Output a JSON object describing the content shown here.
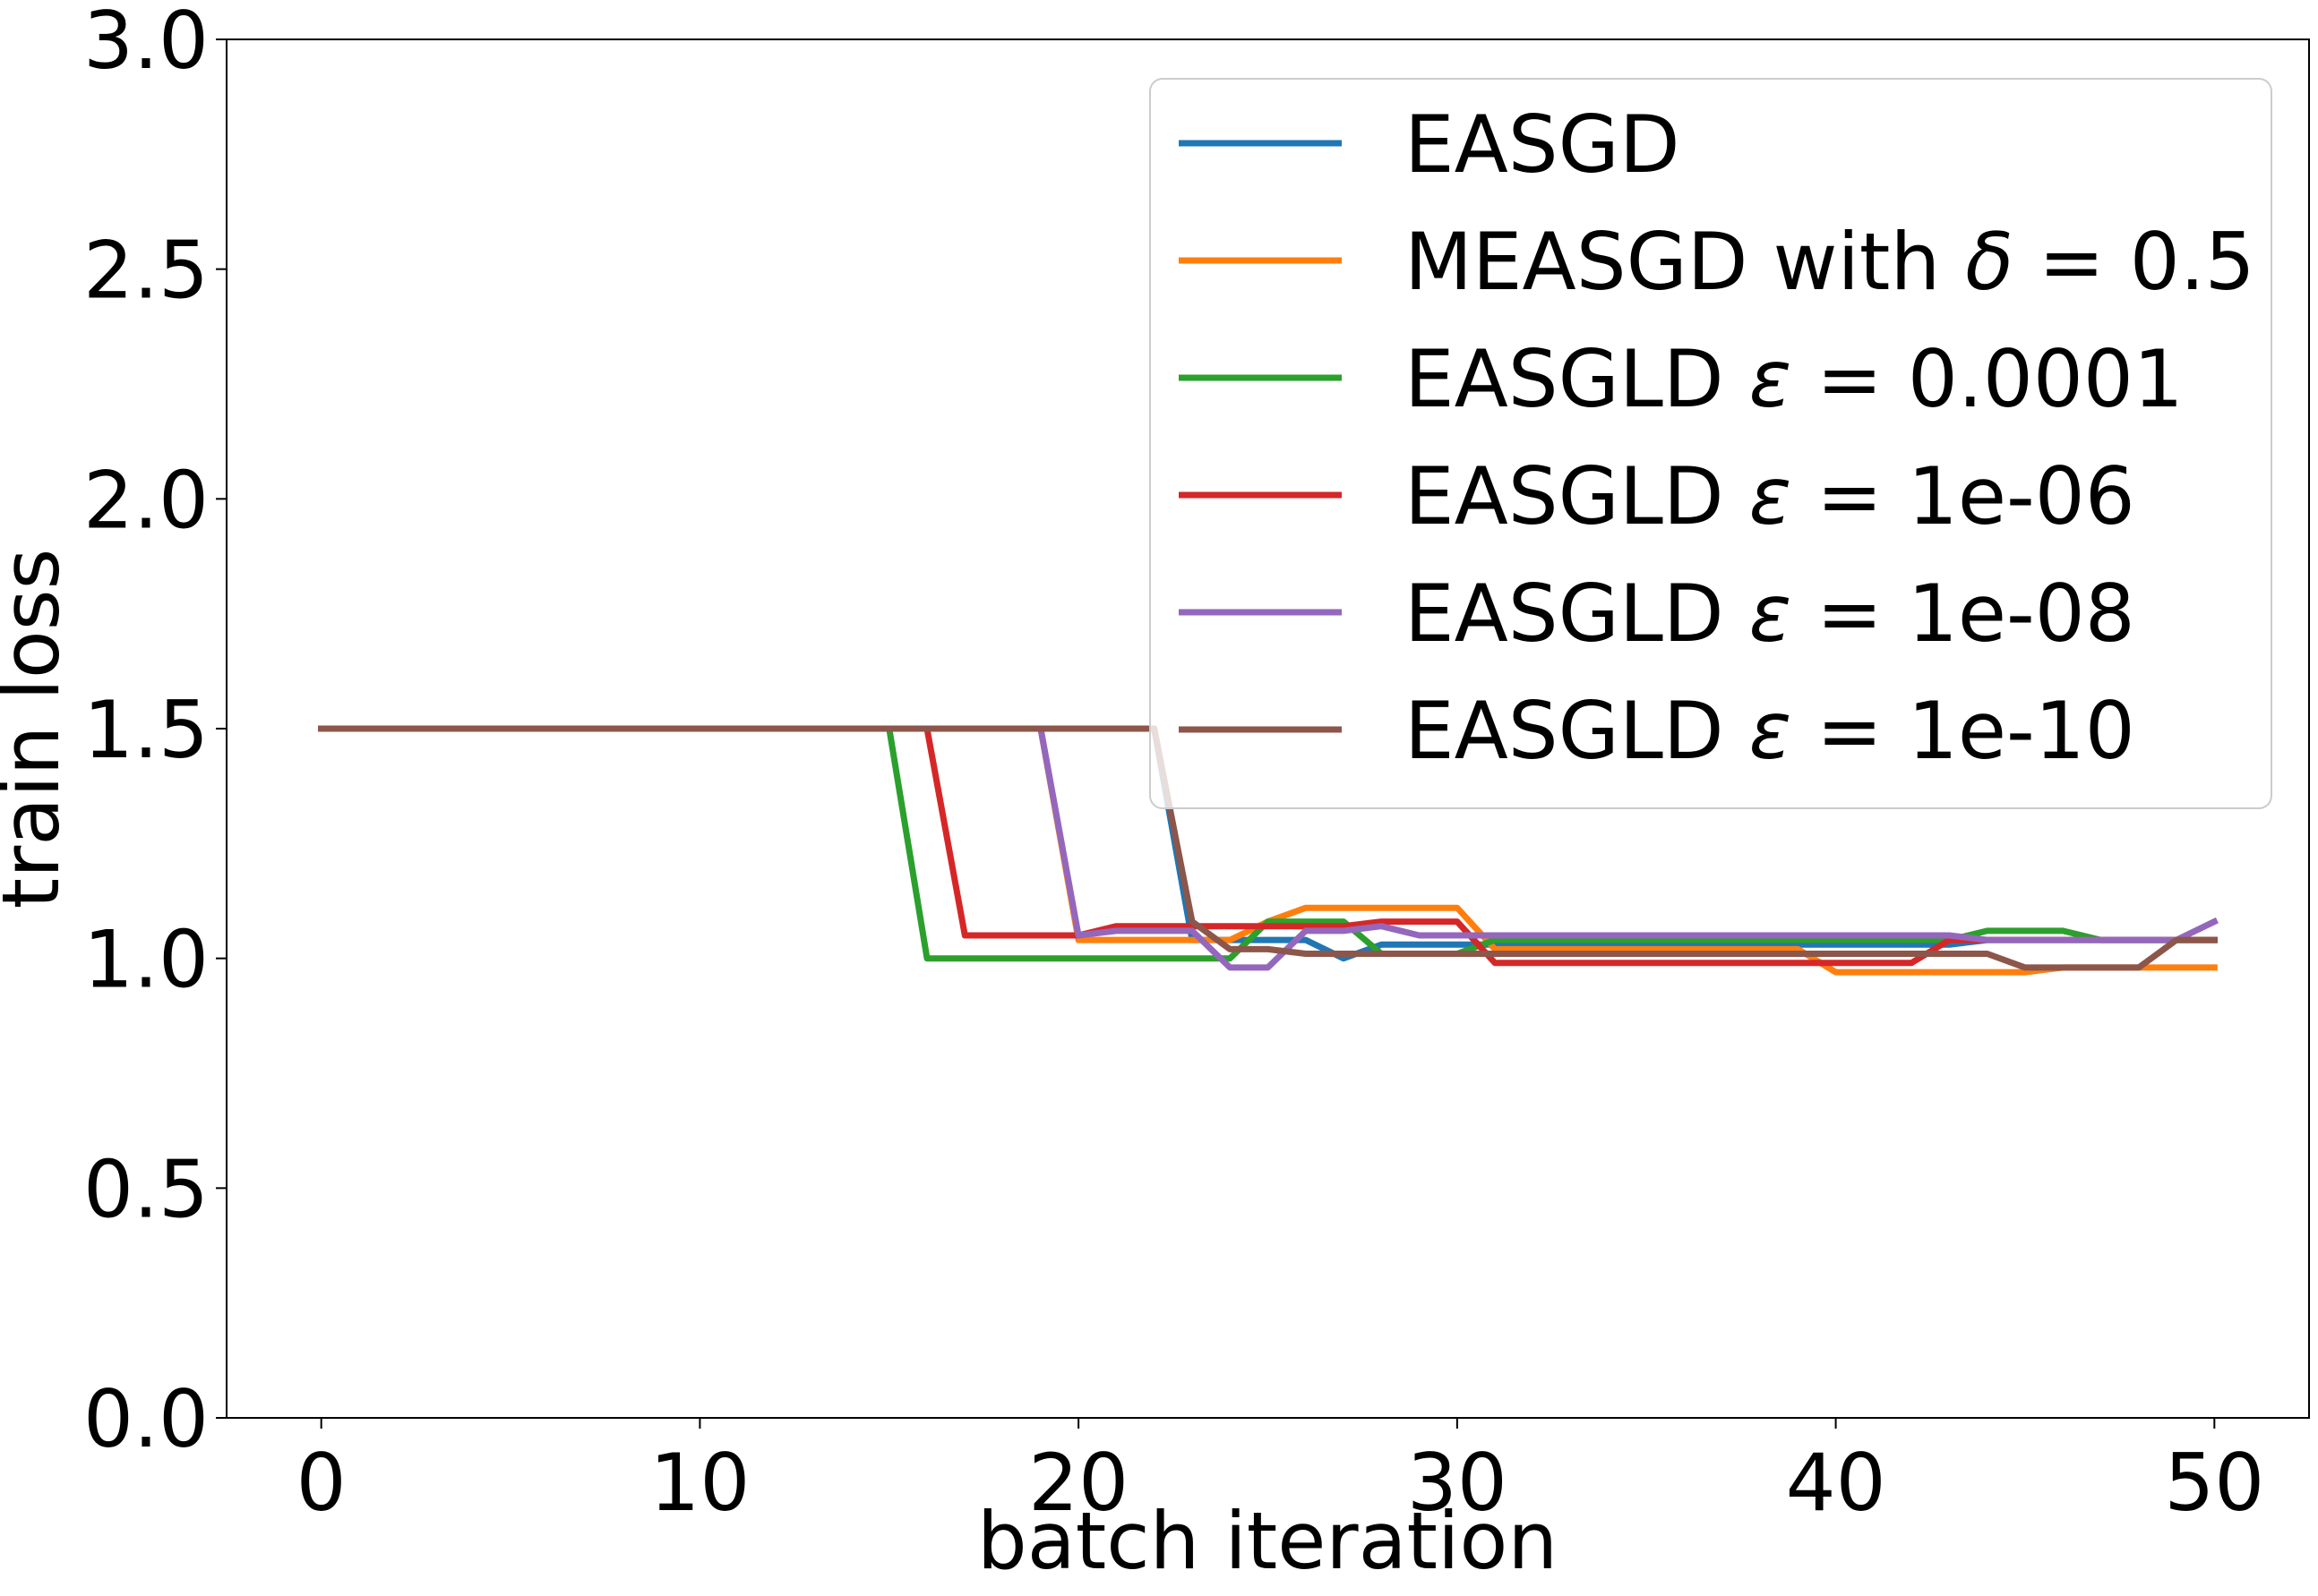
{
  "chart_data": {
    "type": "line",
    "xlabel": "batch iteration",
    "ylabel": "train loss",
    "xlim": [
      -2.5,
      52.5
    ],
    "ylim": [
      0.0,
      3.0
    ],
    "xticks": [
      0,
      10,
      20,
      30,
      40,
      50
    ],
    "xtick_labels": [
      "0",
      "10",
      "20",
      "30",
      "40",
      "50"
    ],
    "yticks": [
      0.0,
      0.5,
      1.0,
      1.5,
      2.0,
      2.5,
      3.0
    ],
    "ytick_labels": [
      "0.0",
      "0.5",
      "1.0",
      "1.5",
      "2.0",
      "2.5",
      "3.0"
    ],
    "grid": false,
    "legend_position": "top-right",
    "x": [
      0,
      1,
      2,
      3,
      4,
      5,
      6,
      7,
      8,
      9,
      10,
      11,
      12,
      13,
      14,
      15,
      16,
      17,
      18,
      19,
      20,
      21,
      22,
      23,
      24,
      25,
      26,
      27,
      28,
      29,
      30,
      31,
      32,
      33,
      34,
      35,
      36,
      37,
      38,
      39,
      40,
      41,
      42,
      43,
      44,
      45,
      46,
      47,
      48,
      49,
      50
    ],
    "series": [
      {
        "name": "EASGD",
        "color": "#1f77b4",
        "values": [
          1.5,
          1.5,
          1.5,
          1.5,
          1.5,
          1.5,
          1.5,
          1.5,
          1.5,
          1.5,
          1.5,
          1.5,
          1.5,
          1.5,
          1.5,
          1.5,
          1.5,
          1.5,
          1.5,
          1.5,
          1.5,
          1.5,
          1.5,
          1.04,
          1.04,
          1.04,
          1.04,
          1.0,
          1.03,
          1.03,
          1.03,
          1.03,
          1.03,
          1.03,
          1.03,
          1.03,
          1.03,
          1.03,
          1.03,
          1.03,
          1.03,
          1.03,
          1.03,
          1.03,
          1.04,
          1.04,
          1.04,
          1.04,
          1.04,
          1.04,
          1.04
        ]
      },
      {
        "name": "MEASGD with δ = 0.5",
        "color": "#ff7f0e",
        "values": [
          1.5,
          1.5,
          1.5,
          1.5,
          1.5,
          1.5,
          1.5,
          1.5,
          1.5,
          1.5,
          1.5,
          1.5,
          1.5,
          1.5,
          1.5,
          1.5,
          1.5,
          1.5,
          1.5,
          1.5,
          1.04,
          1.04,
          1.04,
          1.04,
          1.04,
          1.08,
          1.11,
          1.11,
          1.11,
          1.11,
          1.11,
          1.02,
          1.02,
          1.02,
          1.02,
          1.02,
          1.02,
          1.02,
          1.02,
          1.02,
          0.97,
          0.97,
          0.97,
          0.97,
          0.97,
          0.97,
          0.98,
          0.98,
          0.98,
          0.98,
          0.98
        ]
      },
      {
        "name": "EASGLD ε = 0.0001",
        "color": "#2ca02c",
        "values": [
          1.5,
          1.5,
          1.5,
          1.5,
          1.5,
          1.5,
          1.5,
          1.5,
          1.5,
          1.5,
          1.5,
          1.5,
          1.5,
          1.5,
          1.5,
          1.5,
          1.0,
          1.0,
          1.0,
          1.0,
          1.0,
          1.0,
          1.0,
          1.0,
          1.0,
          1.08,
          1.08,
          1.08,
          1.01,
          1.01,
          1.01,
          1.04,
          1.04,
          1.04,
          1.04,
          1.04,
          1.04,
          1.04,
          1.04,
          1.04,
          1.04,
          1.04,
          1.04,
          1.04,
          1.06,
          1.06,
          1.06,
          1.04,
          1.04,
          1.04,
          1.04
        ]
      },
      {
        "name": "EASGLD ε = 1e-06",
        "color": "#d62728",
        "values": [
          1.5,
          1.5,
          1.5,
          1.5,
          1.5,
          1.5,
          1.5,
          1.5,
          1.5,
          1.5,
          1.5,
          1.5,
          1.5,
          1.5,
          1.5,
          1.5,
          1.5,
          1.05,
          1.05,
          1.05,
          1.05,
          1.07,
          1.07,
          1.07,
          1.07,
          1.07,
          1.07,
          1.07,
          1.08,
          1.08,
          1.08,
          0.99,
          0.99,
          0.99,
          0.99,
          0.99,
          0.99,
          0.99,
          0.99,
          0.99,
          0.99,
          0.99,
          0.99,
          1.04,
          1.04,
          1.04,
          1.04,
          1.04,
          1.04,
          1.04,
          1.04
        ]
      },
      {
        "name": "EASGLD ε = 1e-08",
        "color": "#9467bd",
        "values": [
          1.5,
          1.5,
          1.5,
          1.5,
          1.5,
          1.5,
          1.5,
          1.5,
          1.5,
          1.5,
          1.5,
          1.5,
          1.5,
          1.5,
          1.5,
          1.5,
          1.5,
          1.5,
          1.5,
          1.5,
          1.05,
          1.06,
          1.06,
          1.06,
          0.98,
          0.98,
          1.06,
          1.06,
          1.07,
          1.05,
          1.05,
          1.05,
          1.05,
          1.05,
          1.05,
          1.05,
          1.05,
          1.05,
          1.05,
          1.05,
          1.05,
          1.05,
          1.05,
          1.05,
          1.04,
          1.04,
          1.04,
          1.04,
          1.04,
          1.04,
          1.08
        ]
      },
      {
        "name": "EASGLD ε = 1e-10",
        "color": "#8c564b",
        "values": [
          1.5,
          1.5,
          1.5,
          1.5,
          1.5,
          1.5,
          1.5,
          1.5,
          1.5,
          1.5,
          1.5,
          1.5,
          1.5,
          1.5,
          1.5,
          1.5,
          1.5,
          1.5,
          1.5,
          1.5,
          1.5,
          1.5,
          1.5,
          1.08,
          1.02,
          1.02,
          1.01,
          1.01,
          1.01,
          1.01,
          1.01,
          1.01,
          1.01,
          1.01,
          1.01,
          1.01,
          1.01,
          1.01,
          1.01,
          1.01,
          1.01,
          1.01,
          1.01,
          1.01,
          1.01,
          0.98,
          0.98,
          0.98,
          0.98,
          1.04,
          1.04
        ]
      }
    ]
  },
  "legend": {
    "entries": [
      {
        "pre": "EASGD",
        "sym": "",
        "post": ""
      },
      {
        "pre": "MEASGD with ",
        "sym": "δ",
        "post": " = 0.5"
      },
      {
        "pre": "EASGLD ",
        "sym": "ε",
        "post": " = 0.0001"
      },
      {
        "pre": "EASGLD ",
        "sym": "ε",
        "post": " = 1e-06"
      },
      {
        "pre": "EASGLD ",
        "sym": "ε",
        "post": " = 1e-08"
      },
      {
        "pre": "EASGLD ",
        "sym": "ε",
        "post": " = 1e-10"
      }
    ]
  }
}
